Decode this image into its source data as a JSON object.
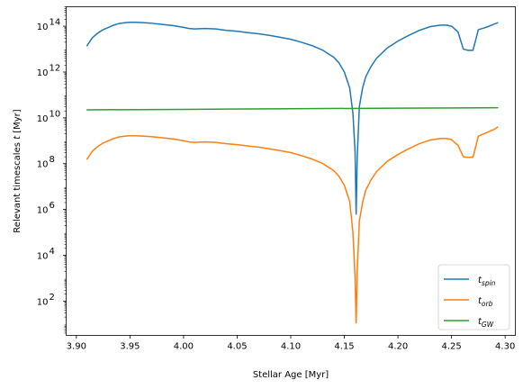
{
  "chart_data": {
    "type": "line",
    "xlabel": "Stellar Age [Myr]",
    "ylabel_prefix": "Relevant timescales ",
    "ylabel_var": "t",
    "ylabel_suffix": " [Myr]",
    "x_scale": "linear",
    "y_scale": "log",
    "xlim": [
      3.8905,
      4.3095
    ],
    "ylim_log10": [
      0.5,
      14.85
    ],
    "xticks": [
      3.9,
      3.95,
      4.0,
      4.05,
      4.1,
      4.15,
      4.2,
      4.25,
      4.3
    ],
    "xtick_labels": [
      "3.90",
      "3.95",
      "4.00",
      "4.05",
      "4.10",
      "4.15",
      "4.20",
      "4.25",
      "4.30"
    ],
    "yticks_log10": [
      2,
      4,
      6,
      8,
      10,
      12,
      14
    ],
    "ytick_base": "10",
    "legend_placement": "lower-right",
    "grid": false,
    "series": [
      {
        "name_base": "t",
        "name_sub": "spin",
        "color": "#1f77b4",
        "points_log10": [
          [
            3.91,
            13.15
          ],
          [
            3.915,
            13.5
          ],
          [
            3.92,
            13.7
          ],
          [
            3.925,
            13.85
          ],
          [
            3.93,
            13.95
          ],
          [
            3.935,
            14.05
          ],
          [
            3.94,
            14.12
          ],
          [
            3.945,
            14.15
          ],
          [
            3.95,
            14.17
          ],
          [
            3.955,
            14.17
          ],
          [
            3.96,
            14.16
          ],
          [
            3.97,
            14.13
          ],
          [
            3.98,
            14.08
          ],
          [
            3.99,
            14.03
          ],
          [
            4.0,
            13.95
          ],
          [
            4.005,
            13.9
          ],
          [
            4.01,
            13.88
          ],
          [
            4.02,
            13.9
          ],
          [
            4.03,
            13.88
          ],
          [
            4.04,
            13.82
          ],
          [
            4.05,
            13.78
          ],
          [
            4.06,
            13.72
          ],
          [
            4.07,
            13.67
          ],
          [
            4.08,
            13.6
          ],
          [
            4.09,
            13.52
          ],
          [
            4.1,
            13.43
          ],
          [
            4.11,
            13.3
          ],
          [
            4.12,
            13.15
          ],
          [
            4.13,
            12.95
          ],
          [
            4.14,
            12.65
          ],
          [
            4.145,
            12.4
          ],
          [
            4.15,
            12.0
          ],
          [
            4.155,
            11.3
          ],
          [
            4.158,
            10.2
          ],
          [
            4.16,
            8.5
          ],
          [
            4.161,
            5.8
          ],
          [
            4.162,
            8.3
          ],
          [
            4.164,
            10.5
          ],
          [
            4.167,
            11.3
          ],
          [
            4.17,
            11.8
          ],
          [
            4.175,
            12.25
          ],
          [
            4.18,
            12.6
          ],
          [
            4.19,
            13.05
          ],
          [
            4.2,
            13.35
          ],
          [
            4.21,
            13.6
          ],
          [
            4.22,
            13.82
          ],
          [
            4.23,
            13.98
          ],
          [
            4.24,
            14.05
          ],
          [
            4.245,
            14.05
          ],
          [
            4.25,
            14.0
          ],
          [
            4.256,
            13.75
          ],
          [
            4.261,
            13.0
          ],
          [
            4.265,
            12.95
          ],
          [
            4.27,
            12.95
          ],
          [
            4.275,
            13.85
          ],
          [
            4.28,
            13.92
          ],
          [
            4.285,
            14.0
          ],
          [
            4.29,
            14.1
          ],
          [
            4.293,
            14.15
          ]
        ]
      },
      {
        "name_base": "t",
        "name_sub": "orb",
        "color": "#ff7f0e",
        "points_log10": [
          [
            3.91,
            8.2
          ],
          [
            3.915,
            8.55
          ],
          [
            3.92,
            8.75
          ],
          [
            3.925,
            8.9
          ],
          [
            3.93,
            9.0
          ],
          [
            3.935,
            9.1
          ],
          [
            3.94,
            9.17
          ],
          [
            3.945,
            9.2
          ],
          [
            3.95,
            9.22
          ],
          [
            3.955,
            9.22
          ],
          [
            3.96,
            9.21
          ],
          [
            3.97,
            9.18
          ],
          [
            3.98,
            9.13
          ],
          [
            3.99,
            9.08
          ],
          [
            4.0,
            9.0
          ],
          [
            4.005,
            8.95
          ],
          [
            4.01,
            8.93
          ],
          [
            4.02,
            8.95
          ],
          [
            4.03,
            8.93
          ],
          [
            4.04,
            8.87
          ],
          [
            4.05,
            8.83
          ],
          [
            4.06,
            8.77
          ],
          [
            4.07,
            8.72
          ],
          [
            4.08,
            8.65
          ],
          [
            4.09,
            8.57
          ],
          [
            4.1,
            8.48
          ],
          [
            4.11,
            8.35
          ],
          [
            4.12,
            8.2
          ],
          [
            4.13,
            8.0
          ],
          [
            4.14,
            7.7
          ],
          [
            4.145,
            7.45
          ],
          [
            4.15,
            7.05
          ],
          [
            4.155,
            6.35
          ],
          [
            4.158,
            5.0
          ],
          [
            4.16,
            3.0
          ],
          [
            4.161,
            1.05
          ],
          [
            4.162,
            3.3
          ],
          [
            4.164,
            5.5
          ],
          [
            4.167,
            6.3
          ],
          [
            4.17,
            6.85
          ],
          [
            4.175,
            7.3
          ],
          [
            4.18,
            7.65
          ],
          [
            4.19,
            8.1
          ],
          [
            4.2,
            8.4
          ],
          [
            4.21,
            8.65
          ],
          [
            4.22,
            8.87
          ],
          [
            4.23,
            9.03
          ],
          [
            4.24,
            9.1
          ],
          [
            4.245,
            9.1
          ],
          [
            4.25,
            9.05
          ],
          [
            4.256,
            8.8
          ],
          [
            4.261,
            8.3
          ],
          [
            4.265,
            8.28
          ],
          [
            4.27,
            8.28
          ],
          [
            4.275,
            9.2
          ],
          [
            4.28,
            9.3
          ],
          [
            4.285,
            9.4
          ],
          [
            4.29,
            9.5
          ],
          [
            4.293,
            9.6
          ]
        ]
      },
      {
        "name_base": "t",
        "name_sub": "GW",
        "color": "#2ca02c",
        "points_log10": [
          [
            3.91,
            10.35
          ],
          [
            4.0,
            10.37
          ],
          [
            4.1,
            10.4
          ],
          [
            4.2,
            10.42
          ],
          [
            4.293,
            10.44
          ]
        ]
      }
    ]
  }
}
